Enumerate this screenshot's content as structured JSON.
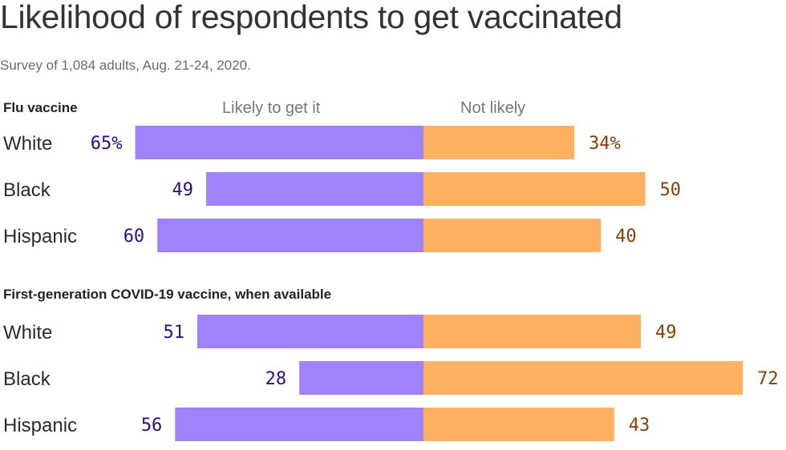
{
  "title": "Likelihood of respondents to get vaccinated",
  "subtitle": "Survey of 1,084 adults, Aug. 21-24, 2020.",
  "legend": {
    "likely": "Likely to get it",
    "not_likely": "Not likely"
  },
  "colors": {
    "likely": "#a182fd",
    "not_likely": "#ffb061",
    "likely_label": "#2a0f86",
    "not_likely_label": "#8a3d05"
  },
  "chart_data": {
    "type": "bar",
    "orientation": "diverging-horizontal",
    "title": "Likelihood of respondents to get vaccinated",
    "subtitle": "Survey of 1,084 adults, Aug. 21-24, 2020.",
    "unit": "%",
    "legend": [
      "Likely to get it",
      "Not likely"
    ],
    "legend_placement": "top",
    "groups": [
      {
        "name": "Flu vaccine",
        "categories": [
          "White",
          "Black",
          "Hispanic"
        ],
        "series": [
          {
            "name": "Likely to get it",
            "values": [
              65,
              49,
              60
            ],
            "labels": [
              "65%",
              "49",
              "60"
            ]
          },
          {
            "name": "Not likely",
            "values": [
              34,
              50,
              40
            ],
            "labels": [
              "34%",
              "50",
              "40"
            ]
          }
        ]
      },
      {
        "name": "First-generation COVID-19 vaccine, when available",
        "categories": [
          "White",
          "Black",
          "Hispanic"
        ],
        "series": [
          {
            "name": "Likely to get it",
            "values": [
              51,
              28,
              56
            ],
            "labels": [
              "51",
              "28",
              "56"
            ]
          },
          {
            "name": "Not likely",
            "values": [
              49,
              72,
              43
            ],
            "labels": [
              "49",
              "72",
              "43"
            ]
          }
        ]
      }
    ]
  }
}
